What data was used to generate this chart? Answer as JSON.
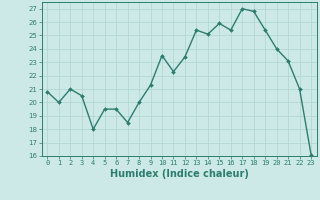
{
  "x": [
    0,
    1,
    2,
    3,
    4,
    5,
    6,
    7,
    8,
    9,
    10,
    11,
    12,
    13,
    14,
    15,
    16,
    17,
    18,
    19,
    20,
    21,
    22,
    23
  ],
  "y": [
    20.8,
    20.0,
    21.0,
    20.5,
    18.0,
    19.5,
    19.5,
    18.5,
    20.0,
    21.3,
    23.5,
    22.3,
    23.4,
    25.4,
    25.1,
    25.9,
    25.4,
    27.0,
    26.8,
    25.4,
    24.0,
    23.1,
    21.0,
    16.1
  ],
  "line_color": "#2d7d6e",
  "marker": "D",
  "markersize": 2.0,
  "linewidth": 1.0,
  "bg_color": "#cce9e8",
  "grid_color": "#aed4d2",
  "xlabel": "Humidex (Indice chaleur)",
  "xlim": [
    -0.5,
    23.5
  ],
  "ylim": [
    16,
    27.5
  ],
  "yticks": [
    16,
    17,
    18,
    19,
    20,
    21,
    22,
    23,
    24,
    25,
    26,
    27
  ],
  "xticks": [
    0,
    1,
    2,
    3,
    4,
    5,
    6,
    7,
    8,
    9,
    10,
    11,
    12,
    13,
    14,
    15,
    16,
    17,
    18,
    19,
    20,
    21,
    22,
    23
  ],
  "tick_label_fontsize": 5.0,
  "xlabel_fontsize": 7.0,
  "tick_color": "#2d7d6e",
  "spine_color": "#2d7d6e"
}
